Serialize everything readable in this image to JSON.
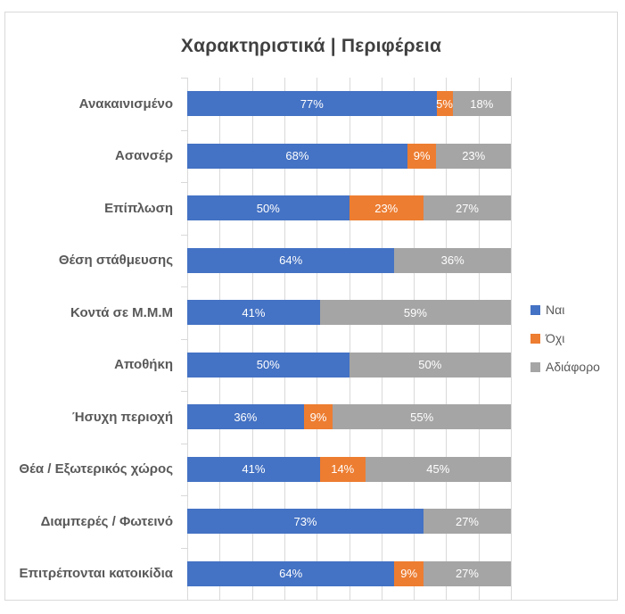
{
  "chart_data": {
    "type": "bar",
    "orientation": "horizontal",
    "stacked": true,
    "title": "Χαρακτηριστικά | Περιφέρεια",
    "categories": [
      "Ανακαινισμένο",
      "Ασανσέρ",
      "Επίπλωση",
      "Θέση στάθμευσης",
      "Κοντά σε Μ.Μ.Μ",
      "Αποθήκη",
      "Ήσυχη περιοχή",
      "Θέα / Εξωτερικός χώρος",
      "Διαμπερές / Φωτεινό",
      "Επιτρέπονται κατοικίδια"
    ],
    "series": [
      {
        "name": "Ναι",
        "color": "#4472C4",
        "values": [
          77,
          68,
          50,
          64,
          41,
          50,
          36,
          41,
          73,
          64
        ]
      },
      {
        "name": "Όχι",
        "color": "#ED7D31",
        "values": [
          5,
          9,
          23,
          0,
          0,
          0,
          9,
          14,
          0,
          9
        ]
      },
      {
        "name": "Αδιάφορο",
        "color": "#A5A5A5",
        "values": [
          18,
          23,
          27,
          36,
          59,
          50,
          55,
          45,
          27,
          27
        ]
      }
    ],
    "value_format": "percent",
    "data_labels": true,
    "xlim": [
      0,
      100
    ],
    "gridline_interval": 10,
    "grid": true,
    "legend_position": "right",
    "colors": {
      "grid": "#D9D9D9",
      "title_text": "#404040",
      "axis_text": "#595959",
      "data_label_text": "#ffffff"
    }
  }
}
